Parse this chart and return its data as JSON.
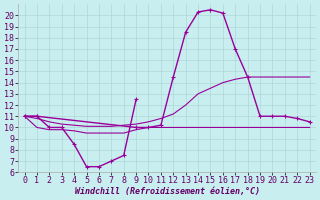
{
  "background_color": "#c8eef0",
  "grid_color": "#b0d8d8",
  "line_color": "#990099",
  "xlim": [
    -0.5,
    23.5
  ],
  "ylim": [
    6,
    21
  ],
  "yticks": [
    6,
    7,
    8,
    9,
    10,
    11,
    12,
    13,
    14,
    15,
    16,
    17,
    18,
    19,
    20
  ],
  "xticks": [
    0,
    1,
    2,
    3,
    4,
    5,
    6,
    7,
    8,
    9,
    10,
    11,
    12,
    13,
    14,
    15,
    16,
    17,
    18,
    19,
    20,
    21,
    22,
    23
  ],
  "xlabel": "Windchill (Refroidissement éolien,°C)",
  "font_size": 6,
  "curves": [
    {
      "x": [
        0,
        1,
        2,
        3,
        4,
        5,
        6,
        7,
        8,
        9
      ],
      "y": [
        11.0,
        11.0,
        10.0,
        10.0,
        8.5,
        6.5,
        6.5,
        7.0,
        7.5,
        12.5
      ],
      "marker": true,
      "lw": 1.0
    },
    {
      "x": [
        0,
        1,
        9,
        10,
        11,
        12,
        13,
        14,
        15,
        16,
        17,
        18,
        19,
        20,
        21,
        22,
        23
      ],
      "y": [
        11.0,
        11.0,
        10.0,
        10.0,
        10.2,
        14.5,
        18.5,
        20.3,
        20.5,
        20.2,
        17.0,
        14.5,
        11.0,
        11.0,
        11.0,
        10.8,
        10.5
      ],
      "marker": true,
      "lw": 1.0
    },
    {
      "x": [
        0,
        1,
        2,
        3,
        4,
        5,
        6,
        7,
        8,
        9,
        10,
        11,
        12,
        13,
        14,
        15,
        16,
        17,
        18,
        19,
        20,
        21,
        22,
        23
      ],
      "y": [
        11.0,
        10.8,
        10.5,
        10.3,
        10.2,
        10.1,
        10.1,
        10.1,
        10.2,
        10.3,
        10.5,
        10.8,
        11.2,
        12.0,
        13.0,
        13.5,
        14.0,
        14.3,
        14.5,
        14.5,
        14.5,
        14.5,
        14.5,
        14.5
      ],
      "marker": false,
      "lw": 0.8
    },
    {
      "x": [
        0,
        1,
        2,
        3,
        4,
        5,
        6,
        7,
        8,
        9,
        10,
        11,
        12,
        13,
        14,
        15,
        16,
        17,
        18,
        19,
        20,
        21,
        22,
        23
      ],
      "y": [
        11.0,
        10.0,
        9.8,
        9.8,
        9.7,
        9.5,
        9.5,
        9.5,
        9.5,
        9.8,
        10.0,
        10.0,
        10.0,
        10.0,
        10.0,
        10.0,
        10.0,
        10.0,
        10.0,
        10.0,
        10.0,
        10.0,
        10.0,
        10.0
      ],
      "marker": false,
      "lw": 0.8
    }
  ]
}
